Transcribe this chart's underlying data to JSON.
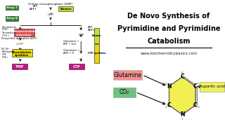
{
  "bg_left": "#ffffff",
  "bg_right": "#f0a878",
  "green_box": "#2e8b2e",
  "yellow_box": "#e8d800",
  "red_box": "#e03030",
  "pink_box": "#e040a0",
  "magenta_box": "#d020d0",
  "kinase_color": "#c8e030",
  "ribonuc_color": "#e04040",
  "thymidylate_color": "#e8d800",
  "ctpsyn_color": "#e8d800",
  "tmp_color": "#dd2299",
  "ctp_color": "#dd2299",
  "ring_fill": "#f0f050",
  "glutamine_fill": "#f09090",
  "co2_fill": "#70c080",
  "aspartic_fill": "#f0f060",
  "title_line1": "De Novo Synthesis of",
  "title_line2": "Pyrimidine and Pyrimidine",
  "title_line3": "Catabolism",
  "subtitle": "www.biochemistrybasics.com"
}
